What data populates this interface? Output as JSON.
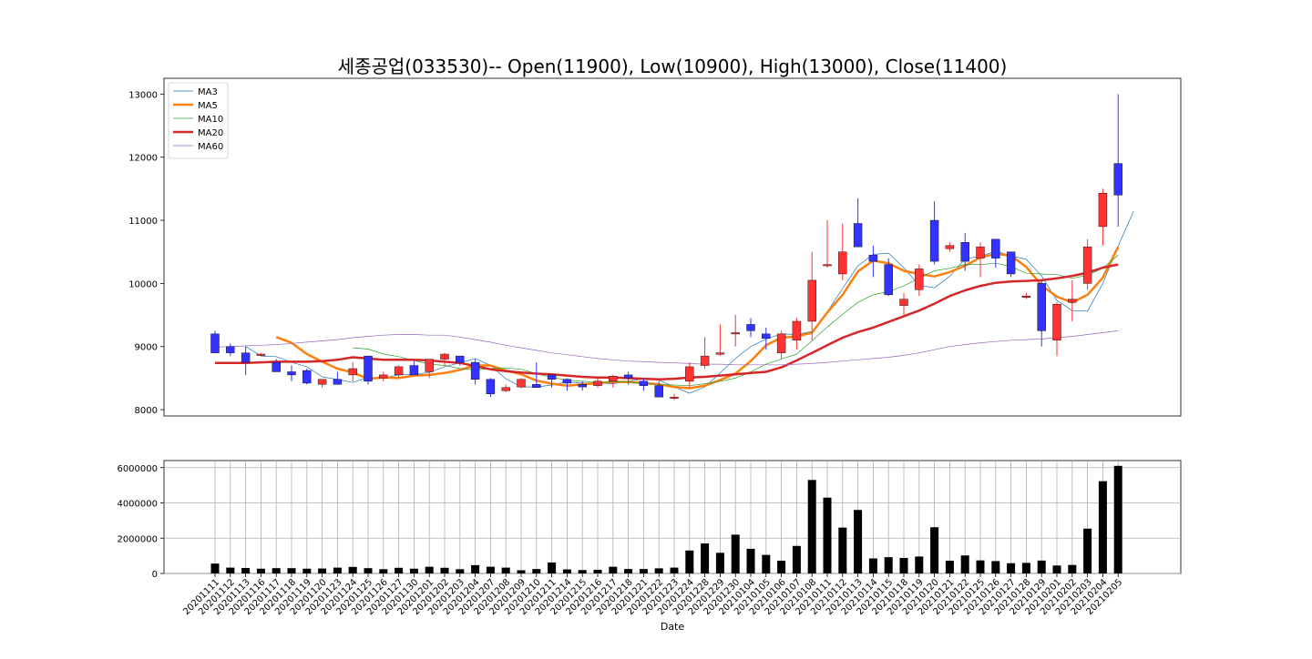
{
  "chart_data": [
    {
      "type": "candlestick",
      "title": "세종공업(033530)-- Open(11900), Low(10900), High(13000), Close(11400)",
      "ylim": [
        7900,
        13250
      ],
      "yticks": [
        8000,
        9000,
        10000,
        11000,
        12000,
        13000
      ],
      "grid": false,
      "legend_position": "upper left",
      "colors": {
        "up": "#ff3333",
        "down": "#3333ff"
      },
      "dates": [
        "20201111",
        "20201112",
        "20201113",
        "20201116",
        "20201117",
        "20201118",
        "20201119",
        "20201120",
        "20201123",
        "20201124",
        "20201125",
        "20201126",
        "20201127",
        "20201130",
        "20201201",
        "20201202",
        "20201203",
        "20201204",
        "20201207",
        "20201208",
        "20201209",
        "20201210",
        "20201211",
        "20201214",
        "20201215",
        "20201216",
        "20201217",
        "20201218",
        "20201221",
        "20201222",
        "20201223",
        "20201224",
        "20201228",
        "20201229",
        "20201230",
        "20210104",
        "20210105",
        "20210106",
        "20210107",
        "20210108",
        "20210111",
        "20210112",
        "20210113",
        "20210114",
        "20210115",
        "20210118",
        "20210119",
        "20210120",
        "20210121",
        "20210122",
        "20210125",
        "20210126",
        "20210127",
        "20210128",
        "20210129",
        "20210201",
        "20210202",
        "20210203",
        "20210204",
        "20210205"
      ],
      "open": [
        9200,
        9000,
        8900,
        8880,
        8750,
        8600,
        8620,
        8400,
        8480,
        8550,
        8850,
        8500,
        8550,
        8700,
        8600,
        8800,
        8850,
        8750,
        8480,
        8300,
        8360,
        8400,
        8550,
        8480,
        8400,
        8380,
        8450,
        8550,
        8450,
        8380,
        8200,
        8450,
        8700,
        8900,
        9200,
        9350,
        9200,
        8900,
        9100,
        9400,
        10300,
        10150,
        10950,
        10450,
        10300,
        9650,
        9900,
        11000,
        10550,
        10650,
        10400,
        10700,
        10500,
        9800,
        10000,
        9100,
        9700,
        10000,
        10900,
        11900
      ],
      "high": [
        9250,
        9050,
        9000,
        8900,
        8800,
        8700,
        8650,
        8480,
        8600,
        8750,
        8850,
        8600,
        8700,
        8780,
        8800,
        8900,
        8850,
        8800,
        8500,
        8400,
        8500,
        8750,
        8550,
        8500,
        8450,
        8500,
        8550,
        8600,
        8500,
        8450,
        8250,
        8750,
        9150,
        9350,
        9500,
        9450,
        9300,
        9250,
        9450,
        10500,
        11000,
        10950,
        11350,
        10600,
        10400,
        9850,
        10300,
        11300,
        10650,
        10800,
        10650,
        10700,
        10500,
        9850,
        10050,
        9700,
        10050,
        10700,
        11500,
        13000
      ],
      "low": [
        8900,
        8850,
        8550,
        8850,
        8600,
        8450,
        8400,
        8350,
        8400,
        8450,
        8400,
        8450,
        8500,
        8550,
        8500,
        8700,
        8700,
        8400,
        8200,
        8280,
        8340,
        8350,
        8350,
        8300,
        8300,
        8350,
        8350,
        8400,
        8300,
        8200,
        8150,
        8350,
        8650,
        8850,
        9000,
        9150,
        8950,
        8800,
        8950,
        9100,
        10250,
        10050,
        10600,
        10100,
        9800,
        9500,
        9800,
        10300,
        10500,
        10200,
        10100,
        10250,
        10100,
        9750,
        9000,
        8850,
        9400,
        9900,
        10600,
        10900
      ],
      "close": [
        8900,
        8900,
        8750,
        8880,
        8600,
        8550,
        8420,
        8480,
        8400,
        8650,
        8450,
        8550,
        8680,
        8550,
        8800,
        8880,
        8750,
        8480,
        8250,
        8350,
        8480,
        8350,
        8480,
        8420,
        8360,
        8450,
        8530,
        8500,
        8380,
        8200,
        8200,
        8680,
        8850,
        8900,
        9220,
        9250,
        9130,
        9200,
        9400,
        10050,
        10300,
        10500,
        10580,
        10350,
        9820,
        9750,
        10230,
        10350,
        10600,
        10350,
        10580,
        10400,
        10150,
        9800,
        9250,
        9670,
        9750,
        10580,
        11430,
        11400
      ],
      "ma": [
        {
          "name": "MA3",
          "color": "#1f77b4",
          "width": 0.7,
          "start": 2,
          "values": [
            9000,
            8850,
            8840,
            8750,
            8680,
            8520,
            8480,
            8430,
            8510,
            8500,
            8550,
            8560,
            8590,
            8680,
            8740,
            8810,
            8700,
            8490,
            8360,
            8360,
            8390,
            8440,
            8420,
            8420,
            8410,
            8450,
            8490,
            8470,
            8360,
            8260,
            8360,
            8580,
            8810,
            9000,
            9120,
            9200,
            9190,
            9240,
            9550,
            9920,
            10280,
            10460,
            10480,
            10250,
            9970,
            9930,
            10110,
            10390,
            10430,
            10510,
            10440,
            10380,
            10120,
            9730,
            9570,
            9560,
            10000,
            10590,
            11140
          ]
        },
        {
          "name": "MA5",
          "color": "#ff7f0e",
          "width": 2.5,
          "start": 4,
          "values": [
            9150,
            9060,
            8880,
            8760,
            8650,
            8590,
            8490,
            8510,
            8500,
            8540,
            8550,
            8580,
            8630,
            8700,
            8700,
            8620,
            8560,
            8460,
            8410,
            8380,
            8400,
            8420,
            8440,
            8440,
            8420,
            8400,
            8360,
            8340,
            8380,
            8470,
            8570,
            8770,
            9020,
            9140,
            9160,
            9220,
            9540,
            9820,
            10190,
            10360,
            10320,
            10200,
            10150,
            10110,
            10180,
            10280,
            10410,
            10470,
            10440,
            10260,
            9970,
            9790,
            9700,
            9820,
            10090,
            10580
          ]
        },
        {
          "name": "MA10",
          "color": "#2ca02c",
          "width": 0.7,
          "start": 9,
          "values": [
            8980,
            8960,
            8880,
            8840,
            8780,
            8720,
            8700,
            8650,
            8630,
            8650,
            8660,
            8640,
            8570,
            8510,
            8470,
            8450,
            8430,
            8440,
            8440,
            8410,
            8400,
            8390,
            8380,
            8410,
            8450,
            8500,
            8600,
            8720,
            8800,
            8880,
            9090,
            9310,
            9510,
            9700,
            9820,
            9870,
            9960,
            10080,
            10200,
            10240,
            10300,
            10300,
            10320,
            10270,
            10160,
            10150,
            10140,
            10080,
            10130,
            10240,
            10450
          ]
        },
        {
          "name": "MA20",
          "color": "#d62728",
          "width": 2.5,
          "start": 0,
          "values": [
            8740,
            8740,
            8740,
            8750,
            8760,
            8760,
            8760,
            8770,
            8790,
            8830,
            8810,
            8790,
            8790,
            8790,
            8780,
            8760,
            8740,
            8690,
            8640,
            8610,
            8590,
            8570,
            8560,
            8540,
            8520,
            8510,
            8510,
            8500,
            8490,
            8480,
            8490,
            8510,
            8520,
            8540,
            8560,
            8580,
            8600,
            8670,
            8780,
            8900,
            9020,
            9140,
            9230,
            9300,
            9390,
            9480,
            9570,
            9680,
            9800,
            9890,
            9960,
            10010,
            10030,
            10040,
            10050,
            10080,
            10120,
            10170,
            10250,
            10300
          ]
        },
        {
          "name": "MA60",
          "color": "#9467bd",
          "width": 0.7,
          "start": 0,
          "values": [
            8990,
            9000,
            9010,
            9020,
            9030,
            9050,
            9070,
            9090,
            9110,
            9140,
            9160,
            9180,
            9190,
            9190,
            9180,
            9180,
            9150,
            9110,
            9070,
            9020,
            8980,
            8940,
            8900,
            8870,
            8840,
            8810,
            8790,
            8770,
            8760,
            8750,
            8740,
            8730,
            8720,
            8720,
            8710,
            8710,
            8710,
            8710,
            8720,
            8730,
            8750,
            8770,
            8790,
            8810,
            8830,
            8860,
            8900,
            8950,
            9000,
            9030,
            9060,
            9080,
            9100,
            9110,
            9120,
            9140,
            9160,
            9190,
            9220,
            9250
          ]
        }
      ]
    },
    {
      "type": "bar",
      "xlabel": "Date",
      "ylim": [
        0,
        6400000
      ],
      "yticks": [
        0,
        2000000,
        4000000,
        6000000
      ],
      "ytick_labels": [
        "0",
        "2000000",
        "4000000",
        "6000000"
      ],
      "grid": true,
      "color": "#000000",
      "volume": [
        560000,
        330000,
        310000,
        270000,
        300000,
        300000,
        270000,
        280000,
        330000,
        370000,
        300000,
        240000,
        320000,
        270000,
        380000,
        320000,
        240000,
        470000,
        380000,
        330000,
        180000,
        250000,
        620000,
        230000,
        190000,
        210000,
        380000,
        250000,
        250000,
        290000,
        330000,
        1300000,
        1700000,
        1170000,
        2200000,
        1400000,
        1050000,
        720000,
        1560000,
        5300000,
        4300000,
        2600000,
        3600000,
        850000,
        920000,
        880000,
        960000,
        2620000,
        720000,
        1020000,
        740000,
        700000,
        580000,
        600000,
        730000,
        450000,
        480000,
        2540000,
        5230000,
        6100000
      ]
    }
  ]
}
